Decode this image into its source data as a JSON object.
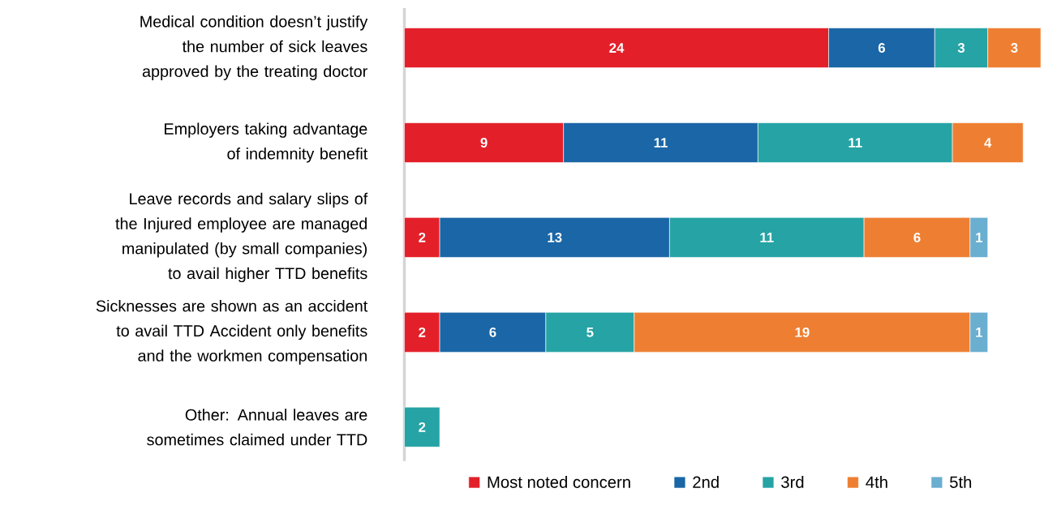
{
  "chart_data": {
    "type": "bar",
    "orientation": "horizontal",
    "stacked": true,
    "data_labels": true,
    "legend": "bottom",
    "marker": "square",
    "categories": [
      "Medical condition doesn’t justify the number of sick leaves approved by the treating doctor",
      "Employers taking advantage of indemnity benefit",
      "Leave records and salary slips of the Injured employee are managed manipulated (by small companies) to avail higher TTD benefits",
      "Sicknesses are shown as an accident to avail TTD Accident only benefits and the workmen compensation",
      "Other: Annual leaves are sometimes claimed under TTD"
    ],
    "series": [
      {
        "name": "Most noted concern",
        "color": "#e3202a",
        "values": [
          24,
          9,
          2,
          2,
          null
        ]
      },
      {
        "name": "2nd",
        "color": "#1a66a6",
        "values": [
          6,
          11,
          13,
          6,
          null
        ]
      },
      {
        "name": "3rd",
        "color": "#26a3a5",
        "values": [
          3,
          11,
          11,
          5,
          2
        ]
      },
      {
        "name": "4th",
        "color": "#ee7f32",
        "values": [
          3,
          4,
          6,
          19,
          null
        ]
      },
      {
        "name": "5th",
        "color": "#6aaed0",
        "values": [
          null,
          null,
          1,
          1,
          null
        ]
      }
    ]
  }
}
